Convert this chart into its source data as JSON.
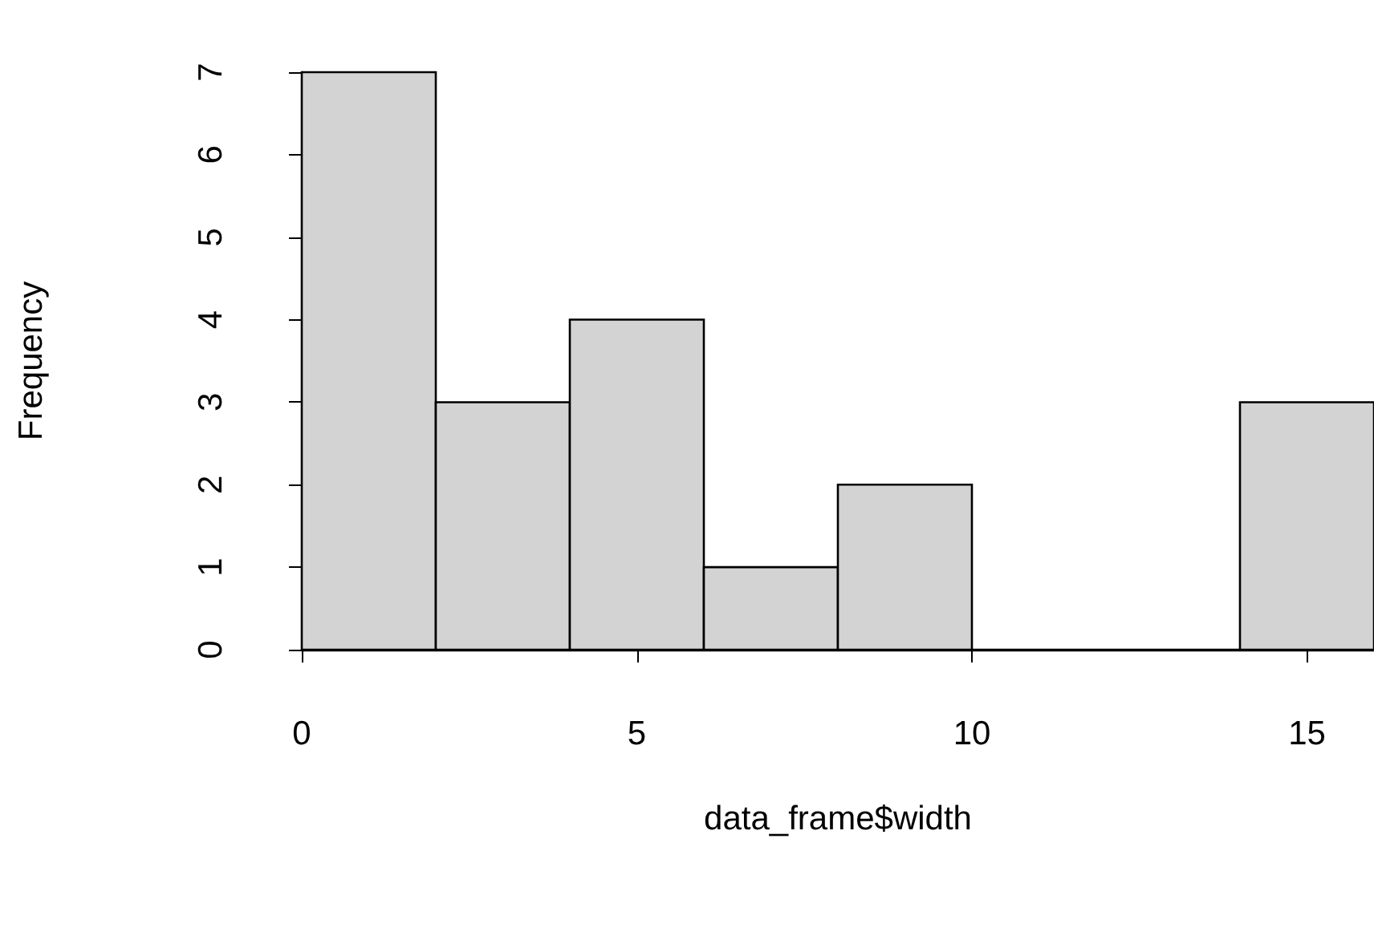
{
  "chart_data": {
    "type": "histogram",
    "xlabel": "data_frame$width",
    "ylabel": "Frequency",
    "bins": [
      0,
      2,
      4,
      6,
      8,
      10,
      12,
      14,
      16
    ],
    "values": [
      7,
      3,
      4,
      1,
      2,
      0,
      0,
      3
    ],
    "color": "#d3d3d3",
    "xlim": [
      0,
      16
    ],
    "xticks": [
      0,
      5,
      10,
      15
    ],
    "ylim": [
      0,
      7
    ],
    "yticks": [
      0,
      1,
      2,
      3,
      4,
      5,
      6,
      7
    ],
    "grid": false
  }
}
